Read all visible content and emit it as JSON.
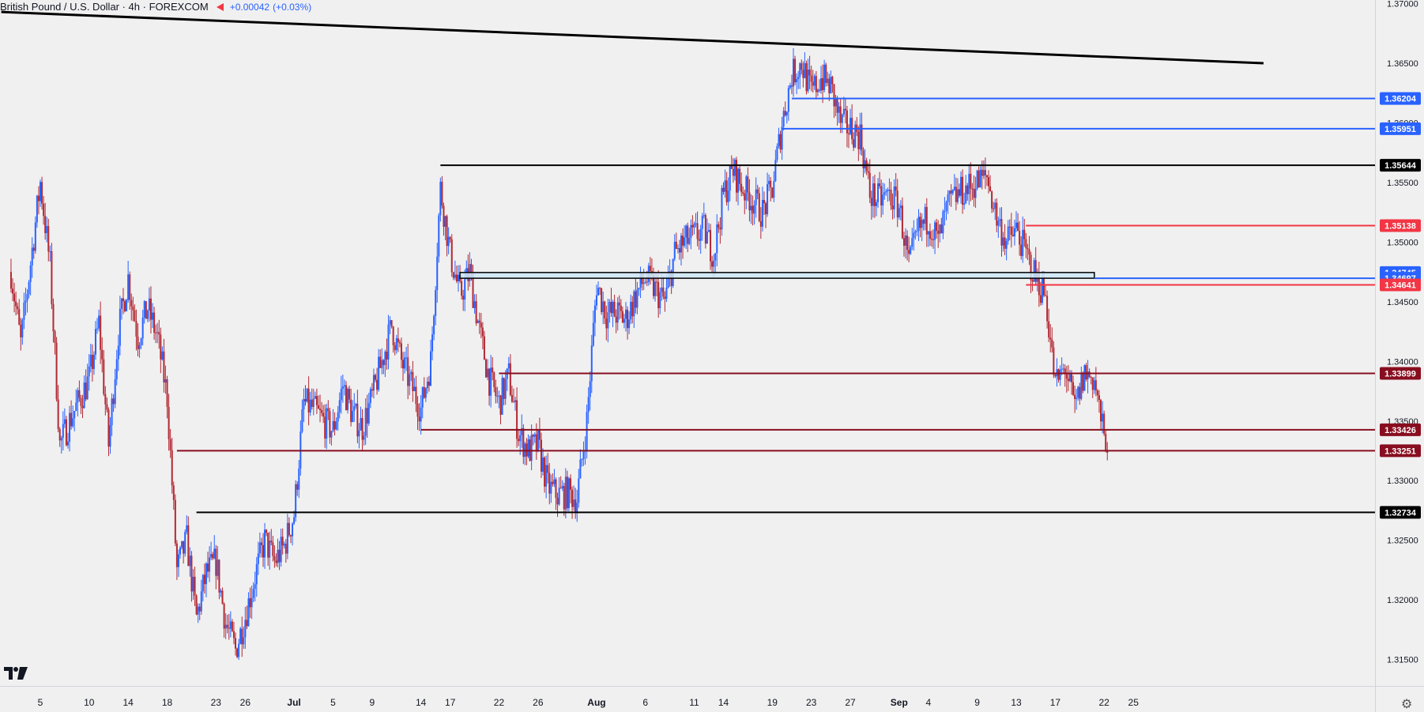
{
  "header": {
    "title": "British Pound / U.S. Dollar · 4h · FOREXCOM",
    "change": "+0.00042",
    "change_pct": "(+0.03%)",
    "flag_icon": "red-flag-icon"
  },
  "chart_data": {
    "type": "candlestick",
    "symbol": "GBPUSD",
    "timeframe": "4h",
    "ylim": [
      1.3106,
      1.3703
    ],
    "y_ticks": [
      {
        "value": 1.315,
        "label": "1.31500"
      },
      {
        "value": 1.32,
        "label": "1.32000"
      },
      {
        "value": 1.325,
        "label": "1.32500"
      },
      {
        "value": 1.33,
        "label": "1.33000"
      },
      {
        "value": 1.335,
        "label": "1.33500"
      },
      {
        "value": 1.34,
        "label": "1.34000"
      },
      {
        "value": 1.345,
        "label": "1.34500"
      },
      {
        "value": 1.35,
        "label": "1.35000"
      },
      {
        "value": 1.355,
        "label": "1.35500"
      },
      {
        "value": 1.36,
        "label": "1.36000"
      },
      {
        "value": 1.365,
        "label": "1.36500"
      },
      {
        "value": 1.37,
        "label": "1.37000"
      }
    ],
    "x_ticks": [
      {
        "date": "2025-06-05",
        "label": "5",
        "bold": false
      },
      {
        "date": "2025-06-10",
        "label": "10",
        "bold": false
      },
      {
        "date": "2025-06-14",
        "label": "14",
        "bold": false
      },
      {
        "date": "2025-06-18",
        "label": "18",
        "bold": false
      },
      {
        "date": "2025-06-23",
        "label": "23",
        "bold": false
      },
      {
        "date": "2025-06-26",
        "label": "26",
        "bold": false
      },
      {
        "date": "2025-07-01",
        "label": "Jul",
        "bold": true
      },
      {
        "date": "2025-07-05",
        "label": "5",
        "bold": false
      },
      {
        "date": "2025-07-09",
        "label": "9",
        "bold": false
      },
      {
        "date": "2025-07-14",
        "label": "14",
        "bold": false
      },
      {
        "date": "2025-07-17",
        "label": "17",
        "bold": false
      },
      {
        "date": "2025-07-22",
        "label": "22",
        "bold": false
      },
      {
        "date": "2025-07-26",
        "label": "26",
        "bold": false
      },
      {
        "date": "2025-08-01",
        "label": "Aug",
        "bold": true
      },
      {
        "date": "2025-08-06",
        "label": "6",
        "bold": false
      },
      {
        "date": "2025-08-11",
        "label": "11",
        "bold": false
      },
      {
        "date": "2025-08-14",
        "label": "14",
        "bold": false
      },
      {
        "date": "2025-08-19",
        "label": "19",
        "bold": false
      },
      {
        "date": "2025-08-23",
        "label": "23",
        "bold": false
      },
      {
        "date": "2025-08-27",
        "label": "27",
        "bold": false
      },
      {
        "date": "2025-09-01",
        "label": "Sep",
        "bold": true
      },
      {
        "date": "2025-09-04",
        "label": "4",
        "bold": false
      },
      {
        "date": "2025-09-09",
        "label": "9",
        "bold": false
      },
      {
        "date": "2025-09-13",
        "label": "13",
        "bold": false
      },
      {
        "date": "2025-09-17",
        "label": "17",
        "bold": false
      },
      {
        "date": "2025-09-22",
        "label": "22",
        "bold": false
      },
      {
        "date": "2025-09-25",
        "label": "25",
        "bold": false
      }
    ],
    "anchors": [
      {
        "date": "2025-06-02",
        "close": 1.3475
      },
      {
        "date": "2025-06-03",
        "close": 1.3415
      },
      {
        "date": "2025-06-05",
        "close": 1.355
      },
      {
        "date": "2025-06-06",
        "close": 1.348
      },
      {
        "date": "2025-06-07",
        "close": 1.333
      },
      {
        "date": "2025-06-08",
        "close": 1.335
      },
      {
        "date": "2025-06-10",
        "close": 1.3385
      },
      {
        "date": "2025-06-11",
        "close": 1.3432
      },
      {
        "date": "2025-06-12",
        "close": 1.333
      },
      {
        "date": "2025-06-13",
        "close": 1.3425
      },
      {
        "date": "2025-06-14",
        "close": 1.347
      },
      {
        "date": "2025-06-15",
        "close": 1.342
      },
      {
        "date": "2025-06-16",
        "close": 1.3445
      },
      {
        "date": "2025-06-17",
        "close": 1.342
      },
      {
        "date": "2025-06-18",
        "close": 1.337
      },
      {
        "date": "2025-06-19",
        "close": 1.3225
      },
      {
        "date": "2025-06-20",
        "close": 1.325
      },
      {
        "date": "2025-06-21",
        "close": 1.3185
      },
      {
        "date": "2025-06-22",
        "close": 1.3222
      },
      {
        "date": "2025-06-23",
        "close": 1.3232
      },
      {
        "date": "2025-06-24",
        "close": 1.318
      },
      {
        "date": "2025-06-25",
        "close": 1.3158
      },
      {
        "date": "2025-06-26",
        "close": 1.3186
      },
      {
        "date": "2025-06-27",
        "close": 1.322
      },
      {
        "date": "2025-06-28",
        "close": 1.325
      },
      {
        "date": "2025-06-29",
        "close": 1.3232
      },
      {
        "date": "2025-06-30",
        "close": 1.3245
      },
      {
        "date": "2025-07-01",
        "close": 1.3272
      },
      {
        "date": "2025-07-02",
        "close": 1.3365
      },
      {
        "date": "2025-07-03",
        "close": 1.336
      },
      {
        "date": "2025-07-04",
        "close": 1.335
      },
      {
        "date": "2025-07-05",
        "close": 1.3342
      },
      {
        "date": "2025-07-06",
        "close": 1.338
      },
      {
        "date": "2025-07-07",
        "close": 1.3355
      },
      {
        "date": "2025-07-08",
        "close": 1.3345
      },
      {
        "date": "2025-07-09",
        "close": 1.337
      },
      {
        "date": "2025-07-10",
        "close": 1.34
      },
      {
        "date": "2025-07-11",
        "close": 1.343
      },
      {
        "date": "2025-07-12",
        "close": 1.34
      },
      {
        "date": "2025-07-13",
        "close": 1.338
      },
      {
        "date": "2025-07-14",
        "close": 1.336
      },
      {
        "date": "2025-07-15",
        "close": 1.34
      },
      {
        "date": "2025-07-16",
        "close": 1.3545
      },
      {
        "date": "2025-07-17",
        "close": 1.349
      },
      {
        "date": "2025-07-18",
        "close": 1.3455
      },
      {
        "date": "2025-07-19",
        "close": 1.3475
      },
      {
        "date": "2025-07-20",
        "close": 1.3425
      },
      {
        "date": "2025-07-21",
        "close": 1.3385
      },
      {
        "date": "2025-07-22",
        "close": 1.3365
      },
      {
        "date": "2025-07-23",
        "close": 1.3388
      },
      {
        "date": "2025-07-24",
        "close": 1.334
      },
      {
        "date": "2025-07-25",
        "close": 1.3325
      },
      {
        "date": "2025-07-26",
        "close": 1.333
      },
      {
        "date": "2025-07-27",
        "close": 1.3295
      },
      {
        "date": "2025-07-28",
        "close": 1.3288
      },
      {
        "date": "2025-07-29",
        "close": 1.329
      },
      {
        "date": "2025-07-30",
        "close": 1.3285
      },
      {
        "date": "2025-07-31",
        "close": 1.335
      },
      {
        "date": "2025-08-01",
        "close": 1.3465
      },
      {
        "date": "2025-08-02",
        "close": 1.344
      },
      {
        "date": "2025-08-03",
        "close": 1.344
      },
      {
        "date": "2025-08-04",
        "close": 1.3435
      },
      {
        "date": "2025-08-05",
        "close": 1.3455
      },
      {
        "date": "2025-08-06",
        "close": 1.347
      },
      {
        "date": "2025-08-07",
        "close": 1.346
      },
      {
        "date": "2025-08-08",
        "close": 1.345
      },
      {
        "date": "2025-08-09",
        "close": 1.349
      },
      {
        "date": "2025-08-10",
        "close": 1.35
      },
      {
        "date": "2025-08-11",
        "close": 1.3505
      },
      {
        "date": "2025-08-12",
        "close": 1.351
      },
      {
        "date": "2025-08-13",
        "close": 1.349
      },
      {
        "date": "2025-08-14",
        "close": 1.354
      },
      {
        "date": "2025-08-15",
        "close": 1.356
      },
      {
        "date": "2025-08-16",
        "close": 1.3545
      },
      {
        "date": "2025-08-17",
        "close": 1.3535
      },
      {
        "date": "2025-08-18",
        "close": 1.3525
      },
      {
        "date": "2025-08-19",
        "close": 1.3545
      },
      {
        "date": "2025-08-20",
        "close": 1.36
      },
      {
        "date": "2025-08-21",
        "close": 1.364
      },
      {
        "date": "2025-08-22",
        "close": 1.365
      },
      {
        "date": "2025-08-23",
        "close": 1.3625
      },
      {
        "date": "2025-08-24",
        "close": 1.3638
      },
      {
        "date": "2025-08-25",
        "close": 1.363
      },
      {
        "date": "2025-08-26",
        "close": 1.36
      },
      {
        "date": "2025-08-27",
        "close": 1.3595
      },
      {
        "date": "2025-08-28",
        "close": 1.359
      },
      {
        "date": "2025-08-29",
        "close": 1.354
      },
      {
        "date": "2025-08-30",
        "close": 1.3535
      },
      {
        "date": "2025-08-31",
        "close": 1.354
      },
      {
        "date": "2025-09-01",
        "close": 1.353
      },
      {
        "date": "2025-09-02",
        "close": 1.348
      },
      {
        "date": "2025-09-03",
        "close": 1.351
      },
      {
        "date": "2025-09-04",
        "close": 1.352
      },
      {
        "date": "2025-09-05",
        "close": 1.35
      },
      {
        "date": "2025-09-06",
        "close": 1.353
      },
      {
        "date": "2025-09-07",
        "close": 1.354
      },
      {
        "date": "2025-09-08",
        "close": 1.3545
      },
      {
        "date": "2025-09-09",
        "close": 1.355
      },
      {
        "date": "2025-09-10",
        "close": 1.3555
      },
      {
        "date": "2025-09-11",
        "close": 1.352
      },
      {
        "date": "2025-09-12",
        "close": 1.35
      },
      {
        "date": "2025-09-13",
        "close": 1.351
      },
      {
        "date": "2025-09-14",
        "close": 1.349
      },
      {
        "date": "2025-09-15",
        "close": 1.347
      },
      {
        "date": "2025-09-16",
        "close": 1.3455
      },
      {
        "date": "2025-09-17",
        "close": 1.338
      },
      {
        "date": "2025-09-18",
        "close": 1.3395
      },
      {
        "date": "2025-09-19",
        "close": 1.336
      },
      {
        "date": "2025-09-20",
        "close": 1.339
      },
      {
        "date": "2025-09-21",
        "close": 1.3385
      },
      {
        "date": "2025-09-22",
        "close": 1.3335
      }
    ],
    "levels": [
      {
        "value": 1.36204,
        "label": "1.36204",
        "color": "#2962ff",
        "start_date": "2025-08-21"
      },
      {
        "value": 1.35951,
        "label": "1.35951",
        "color": "#2962ff",
        "start_date": "2025-08-20"
      },
      {
        "value": 1.35644,
        "label": "1.35644",
        "color": "#000000",
        "start_date": "2025-07-16"
      },
      {
        "value": 1.35138,
        "label": "1.35138",
        "color": "#f23645",
        "start_date": "2025-09-14"
      },
      {
        "value": 1.34745,
        "label": "1.34745",
        "color": "#2962ff",
        "start_date": null
      },
      {
        "value": 1.34697,
        "label": "1.34697",
        "color": "#2962ff",
        "start_date": "2025-09-21"
      },
      {
        "value": 1.34641,
        "label": "1.34641",
        "color": "#f23645",
        "start_date": "2025-09-14"
      },
      {
        "value": 1.33899,
        "label": "1.33899",
        "color": "#880e1f",
        "start_date": "2025-07-22"
      },
      {
        "value": 1.33426,
        "label": "1.33426",
        "color": "#880e1f",
        "start_date": "2025-07-14"
      },
      {
        "value": 1.33251,
        "label": "1.33251",
        "color": "#880e1f",
        "start_date": "2025-06-19"
      },
      {
        "value": 1.32734,
        "label": "1.32734",
        "color": "#000000",
        "start_date": "2025-06-21"
      }
    ],
    "zone": {
      "top": 1.34745,
      "bottom": 1.34697,
      "start_date": "2025-07-18",
      "end_date": "2025-09-21",
      "color": "#cfe8f7"
    },
    "trendline": {
      "start": {
        "date": "2025-06-01",
        "value": 1.3693
      },
      "end": {
        "date": "2025-09-27",
        "value": 1.365
      },
      "color": "#000000"
    },
    "bull_color": "#2962ff",
    "bear_color": "#b22833",
    "grid": false,
    "legend": "none"
  }
}
